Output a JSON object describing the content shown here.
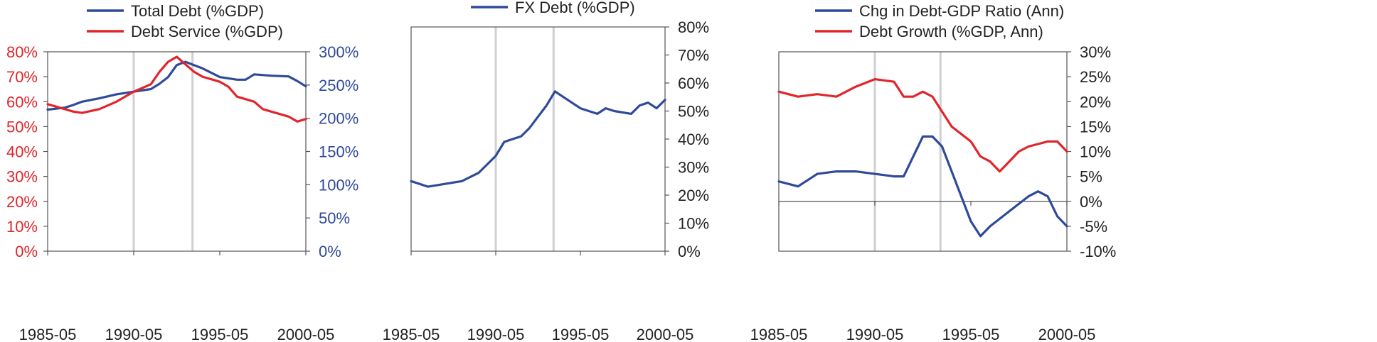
{
  "colors": {
    "blue": "#2f4a9a",
    "red": "#e0252b",
    "axis": "#555555",
    "shade": "#d0d0d0",
    "text": "#222222"
  },
  "x_ticks": [
    "1985-05",
    "1990-05",
    "1995-05",
    "2000-05"
  ],
  "chart_data": [
    {
      "type": "line",
      "title": "",
      "legend": {
        "placement": "top"
      },
      "x_range": [
        "1985-05",
        "2000-05"
      ],
      "y_left": {
        "ticks": [
          "0%",
          "10%",
          "20%",
          "30%",
          "40%",
          "50%",
          "60%",
          "70%",
          "80%"
        ],
        "range": [
          0,
          80
        ],
        "color": "red"
      },
      "y_right": {
        "ticks": [
          "0%",
          "50%",
          "100%",
          "150%",
          "200%",
          "250%",
          "300%"
        ],
        "range": [
          0,
          300
        ],
        "color": "blue"
      },
      "vbands": [
        "1990-05",
        "1993-10"
      ],
      "series": [
        {
          "name": "Total Debt (%GDP)",
          "color": "blue",
          "axis": "right",
          "points": [
            [
              "1985-05",
              213
            ],
            [
              "1986-05",
              216
            ],
            [
              "1986-11",
              220
            ],
            [
              "1987-05",
              225
            ],
            [
              "1988-05",
              230
            ],
            [
              "1989-05",
              236
            ],
            [
              "1990-05",
              240
            ],
            [
              "1991-05",
              244
            ],
            [
              "1991-11",
              252
            ],
            [
              "1992-05",
              262
            ],
            [
              "1992-11",
              280
            ],
            [
              "1993-05",
              285
            ],
            [
              "1993-11",
              280
            ],
            [
              "1994-05",
              275
            ],
            [
              "1995-05",
              262
            ],
            [
              "1996-05",
              258
            ],
            [
              "1996-11",
              258
            ],
            [
              "1997-05",
              266
            ],
            [
              "1998-05",
              264
            ],
            [
              "1999-05",
              263
            ],
            [
              "1999-11",
              256
            ],
            [
              "2000-05",
              248
            ]
          ]
        },
        {
          "name": "Debt Service (%GDP)",
          "color": "red",
          "axis": "left",
          "points": [
            [
              "1985-05",
              59
            ],
            [
              "1986-05",
              57
            ],
            [
              "1986-11",
              56
            ],
            [
              "1987-05",
              55.5
            ],
            [
              "1988-05",
              57
            ],
            [
              "1989-05",
              60
            ],
            [
              "1989-11",
              62
            ],
            [
              "1990-05",
              64
            ],
            [
              "1991-05",
              67
            ],
            [
              "1991-11",
              72
            ],
            [
              "1992-05",
              76
            ],
            [
              "1992-11",
              78
            ],
            [
              "1993-05",
              75
            ],
            [
              "1993-11",
              72
            ],
            [
              "1994-05",
              70
            ],
            [
              "1995-05",
              68
            ],
            [
              "1995-11",
              66
            ],
            [
              "1996-05",
              62
            ],
            [
              "1997-05",
              60
            ],
            [
              "1997-11",
              57
            ],
            [
              "1998-05",
              56
            ],
            [
              "1999-05",
              54
            ],
            [
              "1999-11",
              52
            ],
            [
              "2000-05",
              53
            ]
          ]
        }
      ]
    },
    {
      "type": "line",
      "title": "",
      "legend": {
        "placement": "top"
      },
      "x_range": [
        "1985-05",
        "2000-05"
      ],
      "y_right": {
        "ticks": [
          "0%",
          "10%",
          "20%",
          "30%",
          "40%",
          "50%",
          "60%",
          "70%",
          "80%"
        ],
        "range": [
          0,
          80
        ],
        "color": "text"
      },
      "vbands": [
        "1990-05",
        "1993-10"
      ],
      "series": [
        {
          "name": "FX Debt (%GDP)",
          "color": "blue",
          "axis": "right",
          "points": [
            [
              "1985-05",
              25
            ],
            [
              "1986-05",
              23
            ],
            [
              "1987-05",
              24
            ],
            [
              "1988-05",
              25
            ],
            [
              "1989-05",
              28
            ],
            [
              "1990-05",
              34
            ],
            [
              "1990-11",
              39
            ],
            [
              "1991-05",
              40
            ],
            [
              "1991-11",
              41
            ],
            [
              "1992-05",
              44
            ],
            [
              "1993-05",
              52
            ],
            [
              "1993-11",
              57
            ],
            [
              "1994-05",
              55
            ],
            [
              "1995-05",
              51
            ],
            [
              "1996-05",
              49
            ],
            [
              "1996-11",
              51
            ],
            [
              "1997-05",
              50
            ],
            [
              "1998-05",
              49
            ],
            [
              "1998-11",
              52
            ],
            [
              "1999-05",
              53
            ],
            [
              "1999-11",
              51
            ],
            [
              "2000-05",
              54
            ]
          ]
        }
      ]
    },
    {
      "type": "line",
      "title": "",
      "legend": {
        "placement": "top"
      },
      "x_range": [
        "1985-05",
        "2000-05"
      ],
      "y_right": {
        "ticks": [
          "-10%",
          "-5%",
          "0%",
          "5%",
          "10%",
          "15%",
          "20%",
          "25%",
          "30%"
        ],
        "range": [
          -10,
          30
        ],
        "color": "text"
      },
      "zero_line": true,
      "vbands": [
        "1990-05",
        "1993-10"
      ],
      "series": [
        {
          "name": "Chg in Debt-GDP Ratio (Ann)",
          "color": "blue",
          "axis": "right",
          "points": [
            [
              "1985-05",
              4
            ],
            [
              "1986-05",
              3
            ],
            [
              "1987-05",
              5.5
            ],
            [
              "1988-05",
              6
            ],
            [
              "1989-05",
              6
            ],
            [
              "1990-05",
              5.5
            ],
            [
              "1991-05",
              5
            ],
            [
              "1991-11",
              5
            ],
            [
              "1992-05",
              9
            ],
            [
              "1992-11",
              13
            ],
            [
              "1993-05",
              13
            ],
            [
              "1993-11",
              11
            ],
            [
              "1994-05",
              6
            ],
            [
              "1995-05",
              -4
            ],
            [
              "1995-11",
              -7
            ],
            [
              "1996-05",
              -5
            ],
            [
              "1997-05",
              -2
            ],
            [
              "1998-05",
              1
            ],
            [
              "1998-11",
              2
            ],
            [
              "1999-05",
              1
            ],
            [
              "1999-11",
              -3
            ],
            [
              "2000-05",
              -5
            ]
          ]
        },
        {
          "name": "Debt Growth (%GDP, Ann)",
          "color": "red",
          "axis": "right",
          "points": [
            [
              "1985-05",
              22
            ],
            [
              "1986-05",
              21
            ],
            [
              "1987-05",
              21.5
            ],
            [
              "1988-05",
              21
            ],
            [
              "1989-05",
              23
            ],
            [
              "1990-05",
              24.5
            ],
            [
              "1991-05",
              24
            ],
            [
              "1991-11",
              21
            ],
            [
              "1992-05",
              21
            ],
            [
              "1992-11",
              22
            ],
            [
              "1993-05",
              21
            ],
            [
              "1993-11",
              18
            ],
            [
              "1994-05",
              15
            ],
            [
              "1995-05",
              12
            ],
            [
              "1995-11",
              9
            ],
            [
              "1996-05",
              8
            ],
            [
              "1996-11",
              6
            ],
            [
              "1997-05",
              8
            ],
            [
              "1997-11",
              10
            ],
            [
              "1998-05",
              11
            ],
            [
              "1999-05",
              12
            ],
            [
              "1999-11",
              12
            ],
            [
              "2000-05",
              10
            ]
          ]
        }
      ]
    }
  ]
}
